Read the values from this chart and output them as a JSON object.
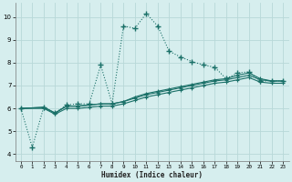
{
  "xlabel": "Humidex (Indice chaleur)",
  "xlim": [
    -0.5,
    23.5
  ],
  "ylim": [
    3.7,
    10.6
  ],
  "xticks": [
    0,
    1,
    2,
    3,
    4,
    5,
    6,
    7,
    8,
    9,
    10,
    11,
    12,
    13,
    14,
    15,
    16,
    17,
    18,
    19,
    20,
    21,
    22,
    23
  ],
  "yticks": [
    4,
    5,
    6,
    7,
    8,
    9,
    10
  ],
  "background_color": "#d6eeee",
  "grid_color": "#b8d8d8",
  "line_color": "#1a7068",
  "line1_x": [
    0,
    1,
    2,
    3,
    4,
    5,
    6,
    7,
    8,
    9,
    10,
    11,
    12,
    13,
    14,
    15,
    16,
    17,
    18,
    19,
    20,
    21,
    22,
    23
  ],
  "line1_y": [
    6.0,
    4.3,
    6.05,
    5.8,
    6.15,
    6.2,
    6.2,
    7.9,
    6.2,
    9.6,
    9.5,
    10.15,
    9.6,
    8.5,
    8.25,
    8.05,
    7.9,
    7.8,
    7.3,
    7.55,
    7.6,
    7.2,
    7.2,
    7.2
  ],
  "line2_x": [
    0,
    2,
    3,
    4,
    5,
    6,
    7,
    8,
    9,
    10,
    11,
    12,
    13,
    14,
    15,
    16,
    17,
    18,
    19,
    20,
    21,
    22,
    23
  ],
  "line2_y": [
    6.0,
    6.05,
    5.8,
    6.1,
    6.1,
    6.15,
    6.2,
    6.2,
    6.3,
    6.5,
    6.65,
    6.75,
    6.85,
    6.95,
    7.05,
    7.15,
    7.25,
    7.3,
    7.45,
    7.55,
    7.3,
    7.2,
    7.2
  ],
  "line3_x": [
    0,
    2,
    3,
    4,
    5,
    6,
    7,
    8,
    9,
    10,
    11,
    12,
    13,
    14,
    15,
    16,
    17,
    18,
    19,
    20,
    21,
    22,
    23
  ],
  "line3_y": [
    6.0,
    6.05,
    5.8,
    6.1,
    6.1,
    6.15,
    6.2,
    6.2,
    6.3,
    6.45,
    6.6,
    6.7,
    6.8,
    6.9,
    7.0,
    7.1,
    7.2,
    7.25,
    7.35,
    7.45,
    7.25,
    7.2,
    7.2
  ],
  "line4_x": [
    0,
    2,
    3,
    4,
    5,
    6,
    7,
    8,
    9,
    10,
    11,
    12,
    13,
    14,
    15,
    16,
    17,
    18,
    19,
    20,
    21,
    22,
    23
  ],
  "line4_y": [
    6.0,
    6.0,
    5.75,
    6.0,
    6.0,
    6.05,
    6.1,
    6.1,
    6.2,
    6.35,
    6.5,
    6.6,
    6.7,
    6.8,
    6.9,
    7.0,
    7.1,
    7.15,
    7.25,
    7.35,
    7.15,
    7.1,
    7.1
  ]
}
